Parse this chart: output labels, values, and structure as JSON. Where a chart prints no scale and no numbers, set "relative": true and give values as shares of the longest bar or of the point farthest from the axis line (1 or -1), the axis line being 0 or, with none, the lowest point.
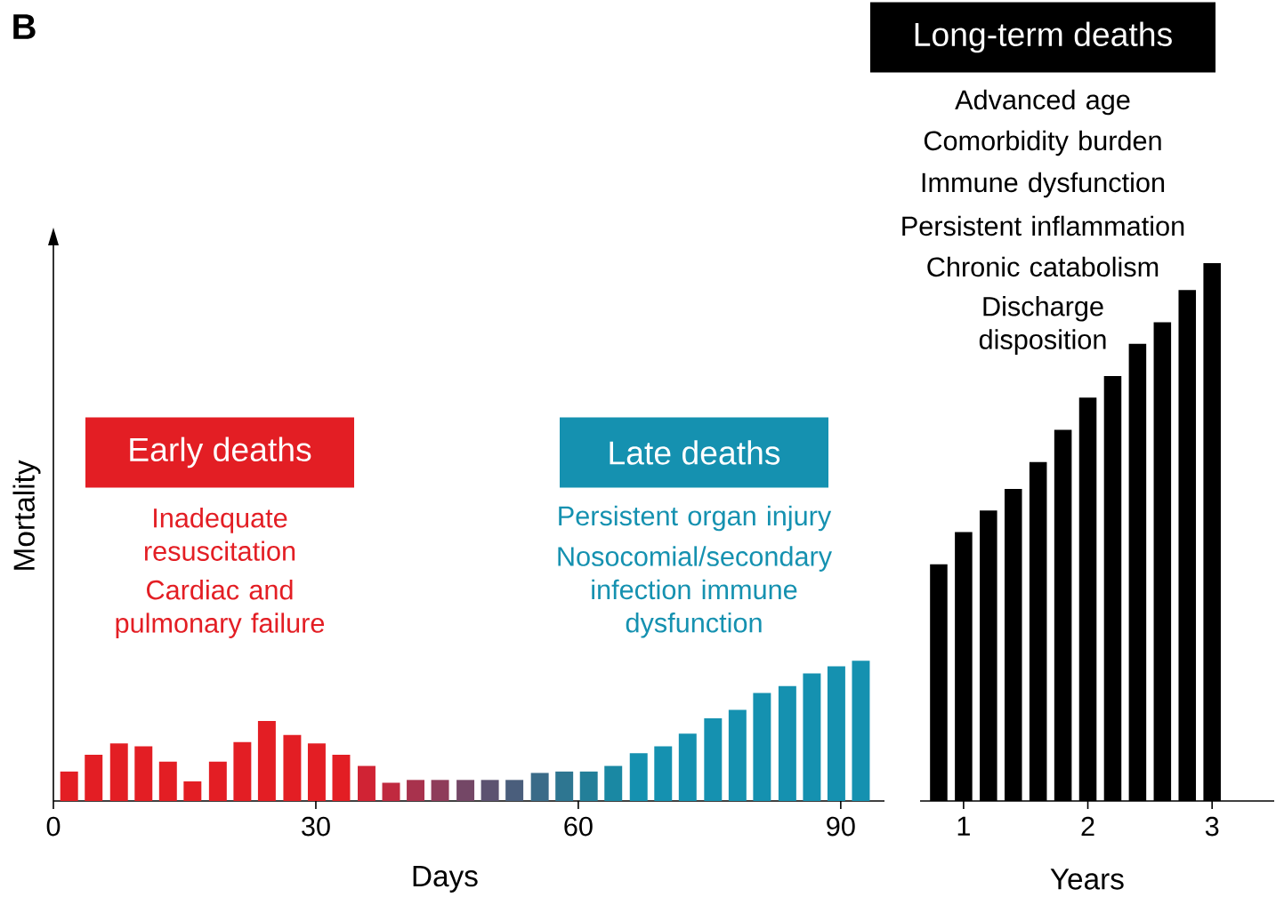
{
  "chart_data": [
    {
      "type": "bar",
      "relative": true,
      "xlabel": "Days",
      "ylabel": "Mortality",
      "xlim": [
        0,
        95
      ],
      "xticks": [
        0,
        30,
        60,
        90
      ],
      "x": [
        1.8,
        4.6,
        7.5,
        10.3,
        13.1,
        15.9,
        18.8,
        21.6,
        24.4,
        27.3,
        30.1,
        32.9,
        35.8,
        38.6,
        41.4,
        44.2,
        47.1,
        49.9,
        52.7,
        55.6,
        58.4,
        61.2,
        64.0,
        66.9,
        69.7,
        72.5,
        75.4,
        78.2,
        81.0,
        83.9,
        86.7,
        89.5,
        92.3
      ],
      "values": [
        0.21,
        0.33,
        0.41,
        0.39,
        0.28,
        0.14,
        0.28,
        0.42,
        0.57,
        0.47,
        0.41,
        0.33,
        0.25,
        0.13,
        0.15,
        0.15,
        0.15,
        0.15,
        0.15,
        0.2,
        0.21,
        0.21,
        0.25,
        0.34,
        0.39,
        0.48,
        0.59,
        0.65,
        0.77,
        0.82,
        0.91,
        0.96,
        1
      ],
      "colors": [
        "#e31e24",
        "#e31e24",
        "#e31e24",
        "#e31e24",
        "#e31e24",
        "#e31e24",
        "#e31e24",
        "#e31e24",
        "#e31e24",
        "#e31e24",
        "#e31e24",
        "#e31e24",
        "#d02334",
        "#c0293f",
        "#a8324d",
        "#8e3c5a",
        "#744766",
        "#5c5270",
        "#4a5e7c",
        "#3a6b88",
        "#2e7691",
        "#237f99",
        "#1a88a3",
        "#1591b0",
        "#1591b0",
        "#1591b0",
        "#1591b0",
        "#1591b0",
        "#1591b0",
        "#1591b0",
        "#1591b0",
        "#1591b0",
        "#1591b0"
      ],
      "annotations": [
        "B",
        "Early deaths",
        "Inadequate resuscitation",
        "Cardiac and pulmonary failure",
        "Late deaths",
        "Persistent organ injury",
        "Nosocomial/secondary infection immune dysfunction"
      ]
    },
    {
      "type": "bar",
      "relative": true,
      "xlabel": "Years",
      "xlim": [
        0.65,
        3.5
      ],
      "xticks": [
        1,
        2,
        3
      ],
      "x": [
        0.8,
        1.0,
        1.2,
        1.4,
        1.6,
        1.8,
        2.0,
        2.2,
        2.4,
        2.6,
        2.8,
        3.0
      ],
      "values": [
        0.44,
        0.5,
        0.54,
        0.58,
        0.63,
        0.69,
        0.75,
        0.79,
        0.85,
        0.89,
        0.95,
        1
      ],
      "color": "#000000",
      "annotations": [
        "Long-term deaths",
        "Advanced age",
        "Comorbidity burden",
        "Immune dysfunction",
        "Persistent inflammation",
        "Chronic catabolism",
        "Discharge disposition"
      ]
    }
  ]
}
